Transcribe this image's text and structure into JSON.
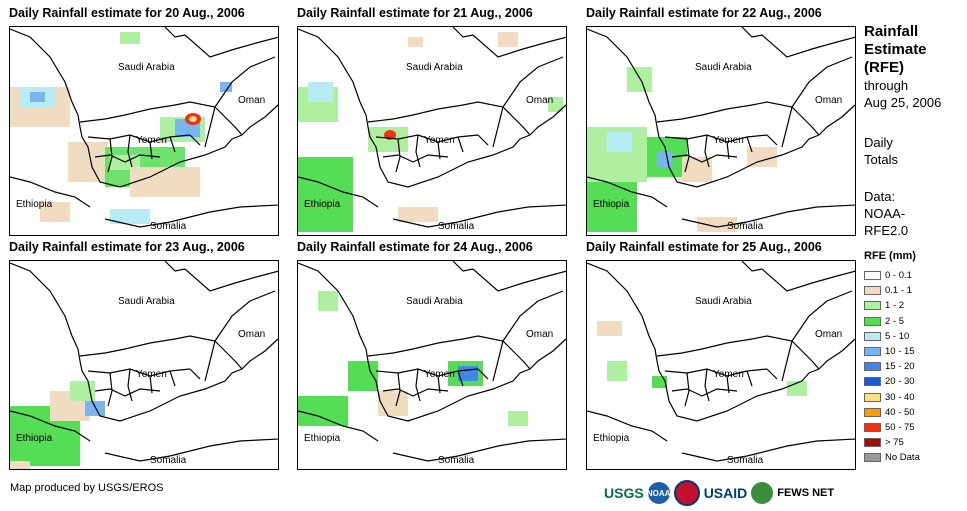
{
  "panels": [
    {
      "title": "Daily Rainfall estimate for 20 Aug., 2006"
    },
    {
      "title": "Daily Rainfall estimate for 21 Aug., 2006"
    },
    {
      "title": "Daily Rainfall estimate for 22 Aug., 2006"
    },
    {
      "title": "Daily Rainfall estimate for 23 Aug., 2006"
    },
    {
      "title": "Daily Rainfall estimate for 24 Aug., 2006"
    },
    {
      "title": "Daily Rainfall estimate for 25 Aug., 2006"
    }
  ],
  "map_labels": {
    "saudi": "Saudi Arabia",
    "oman": "Oman",
    "yemen": "Yemen",
    "ethiopia": "Ethiopia",
    "somalia": "Somalia"
  },
  "sidebar": {
    "title_line1": "Rainfall",
    "title_line2": "Estimate",
    "title_line3": "(RFE)",
    "through": "through",
    "date": "Aug 25, 2006",
    "daily1": "Daily",
    "daily2": "Totals",
    "data1": "Data:",
    "data2": "NOAA-",
    "data3": "RFE2.0"
  },
  "legend": {
    "title": "RFE (mm)",
    "items": [
      {
        "label": "0 - 0.1",
        "color": "#ffffff"
      },
      {
        "label": "0.1 - 1",
        "color": "#f0dcc0"
      },
      {
        "label": "1 - 2",
        "color": "#aef0a0"
      },
      {
        "label": "2 - 5",
        "color": "#55dd55"
      },
      {
        "label": "5 - 10",
        "color": "#b8ecf5"
      },
      {
        "label": "10 - 15",
        "color": "#7ab6ee"
      },
      {
        "label": "15 - 20",
        "color": "#3f88e8"
      },
      {
        "label": "20 - 30",
        "color": "#1f55d8"
      },
      {
        "label": "30 - 40",
        "color": "#fbe08a"
      },
      {
        "label": "40 - 50",
        "color": "#f5a000"
      },
      {
        "label": "50 - 75",
        "color": "#f03010"
      },
      {
        "label": "> 75",
        "color": "#a01010"
      },
      {
        "label": "No Data",
        "color": "#999999"
      }
    ]
  },
  "footer": {
    "credit": "Map produced by USGS/EROS",
    "usgs": "USGS",
    "usaid": "USAID",
    "fews": "FEWS NET",
    "noaa": "NOAA"
  }
}
